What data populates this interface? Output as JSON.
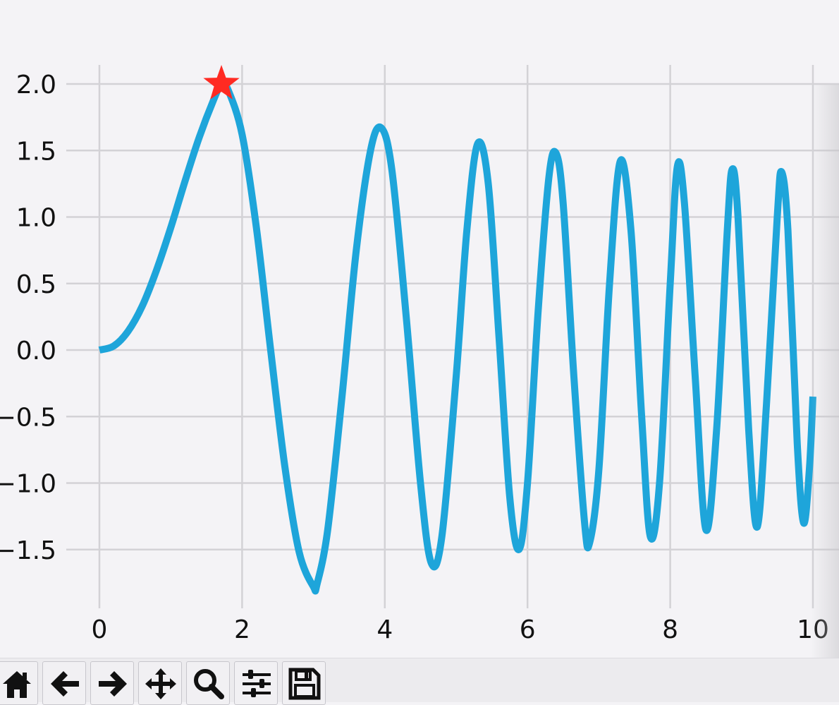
{
  "chart_data": {
    "type": "line",
    "title": "",
    "xlabel": "",
    "ylabel": "",
    "xlim": [
      0,
      10
    ],
    "ylim": [
      -1.9,
      2.1
    ],
    "x_ticks": [
      "0",
      "2",
      "4",
      "6",
      "8",
      "10"
    ],
    "y_ticks": [
      "2.0",
      "1.5",
      "1.0",
      "0.5",
      "0.0",
      "−0.5",
      "−1.0",
      "−1.5"
    ],
    "grid": true,
    "series": [
      {
        "function": "y = 2 * sin(x^1.5 * 0.8) ... sampled from the plot",
        "color": "#1ea5da",
        "x": [
          0,
          0.2,
          0.4,
          0.6,
          0.8,
          1.0,
          1.2,
          1.4,
          1.6,
          1.71,
          1.8,
          2.0,
          2.2,
          2.4,
          2.6,
          2.8,
          3.0,
          3.05,
          3.2,
          3.4,
          3.6,
          3.8,
          3.95,
          4.1,
          4.3,
          4.5,
          4.65,
          4.8,
          5.0,
          5.15,
          5.3,
          5.45,
          5.6,
          5.75,
          5.88,
          6.0,
          6.15,
          6.3,
          6.4,
          6.5,
          6.65,
          6.8,
          6.87,
          7.0,
          7.15,
          7.3,
          7.45,
          7.6,
          7.72,
          7.85,
          8.0,
          8.1,
          8.2,
          8.35,
          8.5,
          8.65,
          8.8,
          8.87,
          8.95,
          9.1,
          9.22,
          9.35,
          9.5,
          9.56,
          9.65,
          9.78,
          9.87,
          9.95,
          10.0
        ],
        "y": [
          0,
          0.03,
          0.14,
          0.33,
          0.6,
          0.92,
          1.27,
          1.6,
          1.88,
          2.0,
          1.96,
          1.62,
          0.92,
          0.0,
          -0.88,
          -1.52,
          -1.78,
          -1.76,
          -1.35,
          -0.35,
          0.75,
          1.5,
          1.67,
          1.35,
          0.25,
          -1.0,
          -1.6,
          -1.4,
          -0.2,
          0.9,
          1.55,
          1.25,
          0.1,
          -1.1,
          -1.5,
          -1.0,
          0.3,
          1.3,
          1.48,
          1.1,
          -0.2,
          -1.3,
          -1.45,
          -0.9,
          0.5,
          1.42,
          0.9,
          -0.5,
          -1.4,
          -1.0,
          0.5,
          1.38,
          1.1,
          -0.2,
          -1.35,
          -0.6,
          0.9,
          1.36,
          1.0,
          -0.6,
          -1.33,
          -0.4,
          1.0,
          1.34,
          0.9,
          -0.7,
          -1.3,
          -0.9,
          -0.35
        ]
      }
    ],
    "marker": {
      "shape": "star",
      "color": "#ff2a22",
      "x": 1.71,
      "y": 2.0
    }
  },
  "toolbar": {
    "buttons": [
      {
        "name": "home",
        "icon": "home-icon"
      },
      {
        "name": "back",
        "icon": "arrow-left-icon"
      },
      {
        "name": "forward",
        "icon": "arrow-right-icon"
      },
      {
        "name": "pan",
        "icon": "move-icon"
      },
      {
        "name": "zoom",
        "icon": "magnifier-icon"
      },
      {
        "name": "subplots",
        "icon": "sliders-icon"
      },
      {
        "name": "save",
        "icon": "floppy-disk-icon"
      }
    ]
  }
}
